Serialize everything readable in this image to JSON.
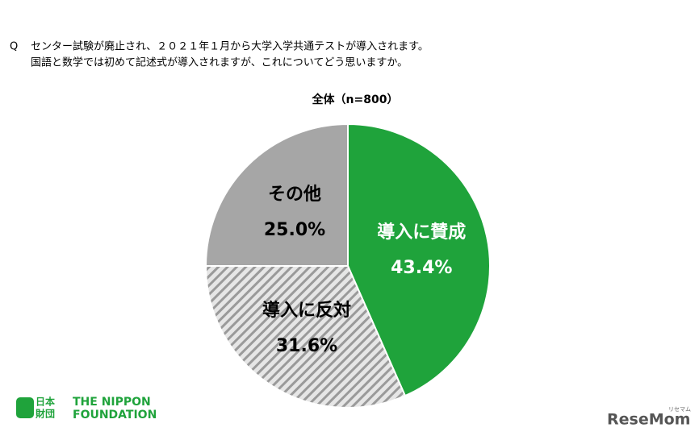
{
  "header": {
    "question_mark": "Q",
    "question_line1": "センター試験が廃止され、２０２１年１月から大学入学共通テストが導入されます。",
    "question_line2": "国語と数学では初めて記述式が導入されますが、これについてどう思いますか。"
  },
  "chart_data": {
    "type": "pie",
    "title": "全体（n=800）",
    "categories": [
      "導入に賛成",
      "導入に反対",
      "その他"
    ],
    "values": [
      43.4,
      31.6,
      25.0
    ],
    "value_labels": [
      "43.4%",
      "31.6%",
      "25.0%"
    ],
    "colors": [
      "#1fa33b",
      "hatch",
      "#a6a6a6"
    ],
    "label_colors": [
      "#ffffff",
      "#000000",
      "#000000"
    ]
  },
  "footer": {
    "logo_jp_top": "日本",
    "logo_jp_bottom": "財団",
    "logo_en_line1": "THE NIPPON",
    "logo_en_line2": "FOUNDATION",
    "brand": "ReseMom",
    "brand_small": "リセマム"
  }
}
